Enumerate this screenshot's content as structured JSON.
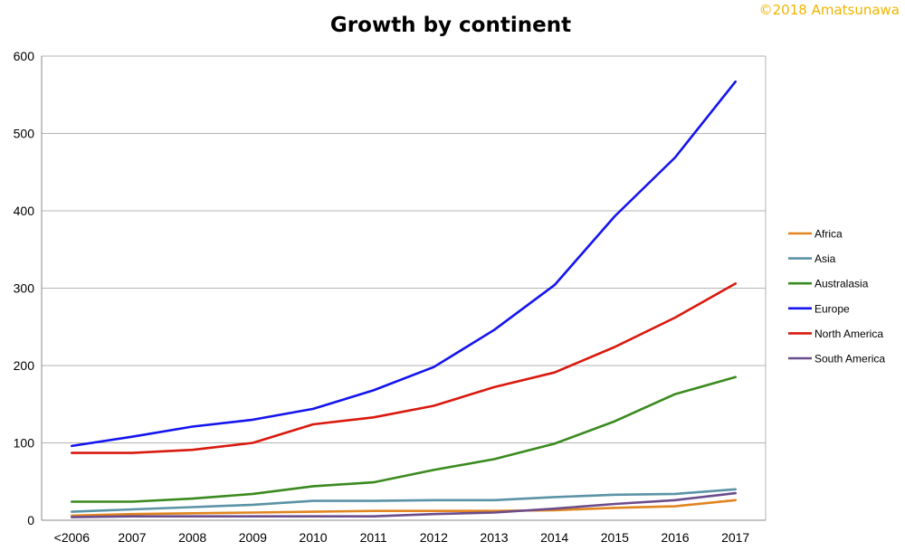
{
  "copyright": "©2018 Amatsunawa",
  "colors": {
    "copyright": "#f0b400",
    "grid": "#b3b3b3",
    "axis": "#888888"
  },
  "chart_data": {
    "type": "line",
    "title": "Growth by continent",
    "xlabel": "",
    "ylabel": "",
    "categories": [
      "<2006",
      "2007",
      "2008",
      "2009",
      "2010",
      "2011",
      "2012",
      "2013",
      "2014",
      "2015",
      "2016",
      "2017"
    ],
    "ylim": [
      0,
      600
    ],
    "yticks": [
      0,
      100,
      200,
      300,
      400,
      500,
      600
    ],
    "grid": true,
    "legend_position": "right",
    "series": [
      {
        "name": "Africa",
        "color": "#e0851f",
        "values": [
          6,
          8,
          9,
          10,
          11,
          12,
          12,
          12,
          13,
          16,
          18,
          26
        ]
      },
      {
        "name": "Asia",
        "color": "#5b93a6",
        "values": [
          11,
          14,
          17,
          20,
          25,
          25,
          26,
          26,
          30,
          33,
          34,
          40
        ]
      },
      {
        "name": "Australasia",
        "color": "#3a8a1f",
        "values": [
          24,
          24,
          28,
          34,
          44,
          49,
          65,
          79,
          99,
          128,
          163,
          185
        ]
      },
      {
        "name": "Europe",
        "color": "#1414ee",
        "values": [
          96,
          108,
          121,
          130,
          144,
          168,
          198,
          246,
          304,
          393,
          469,
          567
        ]
      },
      {
        "name": "North America",
        "color": "#d9190e",
        "values": [
          87,
          87,
          91,
          100,
          124,
          133,
          148,
          172,
          191,
          224,
          262,
          306
        ]
      },
      {
        "name": "South America",
        "color": "#6b4c8c",
        "values": [
          4,
          5,
          5,
          5,
          5,
          5,
          8,
          10,
          15,
          21,
          26,
          35
        ]
      }
    ]
  }
}
